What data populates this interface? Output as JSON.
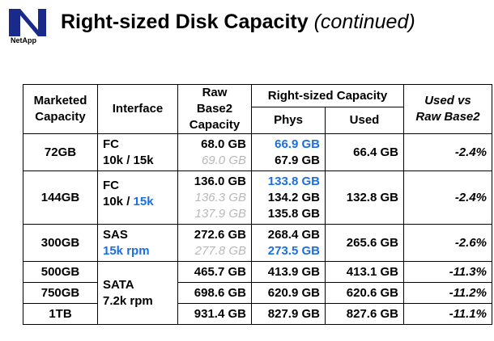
{
  "logo": {
    "text": "NetApp"
  },
  "title": {
    "main": "Right-sized Disk Capacity",
    "sub": "(continued)"
  },
  "table": {
    "headers": {
      "marketed": [
        "Marketed",
        "Capacity"
      ],
      "interface": "Interface",
      "raw": [
        "Raw",
        "Base2",
        "Capacity"
      ],
      "right_sized": "Right-sized Capacity",
      "phys": "Phys",
      "used": "Used",
      "used_vs": [
        "Used vs",
        "Raw Base2"
      ]
    },
    "rows": [
      {
        "marketed": "72GB",
        "interface": [
          "FC",
          "10k / 15k"
        ],
        "raw": [
          "68.0 GB",
          "69.0 GB"
        ],
        "phys": [
          "66.9 GB",
          "67.9 GB"
        ],
        "used": "66.4 GB",
        "pct": "-2.4%"
      },
      {
        "marketed": "144GB",
        "interface": [
          "FC",
          "10k / ",
          "15k"
        ],
        "raw": [
          "136.0 GB",
          "136.3 GB",
          "137.9 GB"
        ],
        "phys": [
          "133.8 GB",
          "134.2 GB",
          "135.8 GB"
        ],
        "used": "132.8 GB",
        "pct": "-2.4%"
      },
      {
        "marketed": "300GB",
        "interface": [
          "SAS",
          "15k rpm"
        ],
        "raw": [
          "272.6 GB",
          "277.8 GB"
        ],
        "phys": [
          "268.4 GB",
          "273.5 GB"
        ],
        "used": "265.6 GB",
        "pct": "-2.6%"
      },
      {
        "marketed": "500GB",
        "interface": [
          "SATA",
          "7.2k rpm"
        ],
        "raw": [
          "465.7 GB"
        ],
        "phys": [
          "413.9 GB"
        ],
        "used": "413.1 GB",
        "pct": "-11.3%"
      },
      {
        "marketed": "750GB",
        "raw": [
          "698.6 GB"
        ],
        "phys": [
          "620.9 GB"
        ],
        "used": "620.6 GB",
        "pct": "-11.2%"
      },
      {
        "marketed": "1TB",
        "raw": [
          "931.4 GB"
        ],
        "phys": [
          "827.9 GB"
        ],
        "used": "827.6 GB",
        "pct": "-11.1%"
      }
    ]
  },
  "colors": {
    "blue_highlight": "#1c6fe0",
    "gray_text": "#b8b8b8"
  }
}
